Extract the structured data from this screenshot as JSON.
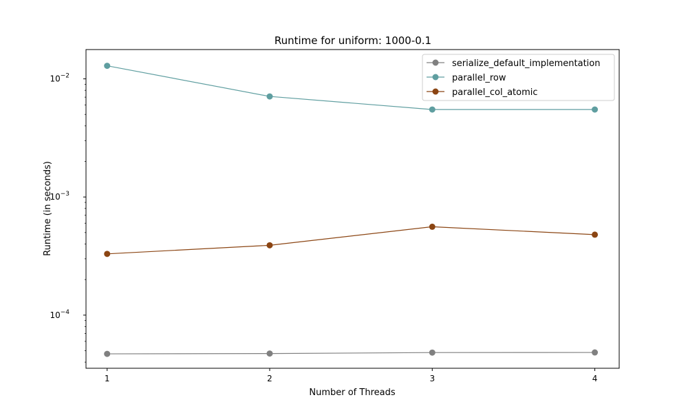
{
  "chart_data": {
    "type": "line",
    "title": "Runtime for uniform: 1000-0.1",
    "xlabel": "Number of Threads",
    "ylabel": "Runtime (in seconds)",
    "x": [
      1,
      2,
      3,
      4
    ],
    "x_ticks": [
      "1",
      "2",
      "3",
      "4"
    ],
    "xlim": [
      0.87,
      4.15
    ],
    "yscale": "log",
    "ylim": [
      3.55e-05,
      0.0177
    ],
    "y_ticks": [
      {
        "value": 0.0001,
        "base": "10",
        "exp": "−4"
      },
      {
        "value": 0.001,
        "base": "10",
        "exp": "−3"
      },
      {
        "value": 0.01,
        "base": "10",
        "exp": "−2"
      }
    ],
    "grid": false,
    "legend_position": "top-right",
    "series": [
      {
        "name": "serialize_default_implementation",
        "color": "#808080",
        "marker": "circle",
        "values": [
          4.7e-05,
          4.73e-05,
          4.82e-05,
          4.83e-05
        ]
      },
      {
        "name": "parallel_row",
        "color": "#5f9ea0",
        "marker": "circle",
        "values": [
          0.0129,
          0.0071,
          0.0055,
          0.0055
        ]
      },
      {
        "name": "parallel_col_atomic",
        "color": "#8b4513",
        "marker": "circle",
        "values": [
          0.00033,
          0.00039,
          0.00056,
          0.00048
        ]
      }
    ]
  }
}
